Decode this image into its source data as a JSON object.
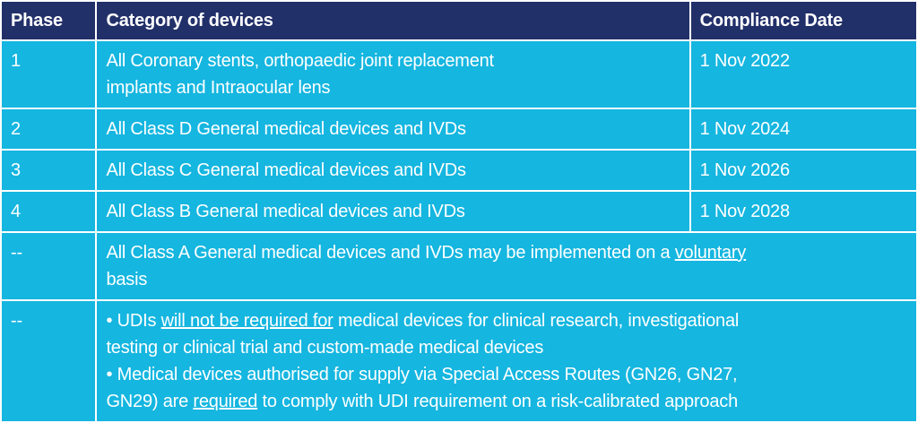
{
  "header": {
    "phase": "Phase",
    "category": "Category of devices",
    "date": "Compliance Date"
  },
  "rows": [
    {
      "phase": "1",
      "lines": [
        "All Coronary stents, orthopaedic joint replacement",
        "implants and Intraocular lens"
      ],
      "date": "1 Nov 2022"
    },
    {
      "phase": "2",
      "category": "All Class D General medical devices and IVDs",
      "date": "1 Nov 2024"
    },
    {
      "phase": "3",
      "category": "All Class C General medical devices and IVDs",
      "date": "1 Nov 2026"
    },
    {
      "phase": "4",
      "category": "All Class B General medical devices and IVDs",
      "date": "1 Nov 2028"
    }
  ],
  "voluntary_row": {
    "phase": "--",
    "pre": "All Class A General medical devices and IVDs may be implemented on a ",
    "underlined": "voluntary",
    "line2": "basis"
  },
  "notes_row": {
    "phase": "--",
    "b1_pre": "• UDIs ",
    "b1_u": "will not be required for",
    "b1_post": " medical devices for clinical research, investigational",
    "b1_line2": "testing or clinical trial and custom-made medical devices",
    "b2_line1": "• Medical devices authorised for supply via Special Access Routes (GN26, GN27,",
    "b2_pre": "GN29) are ",
    "b2_u": "required",
    "b2_post": " to comply with UDI requirement on a risk-calibrated approach"
  },
  "colors": {
    "header_bg": "#22306a",
    "cell_bg": "#15b6e0",
    "text": "#ffffff"
  }
}
